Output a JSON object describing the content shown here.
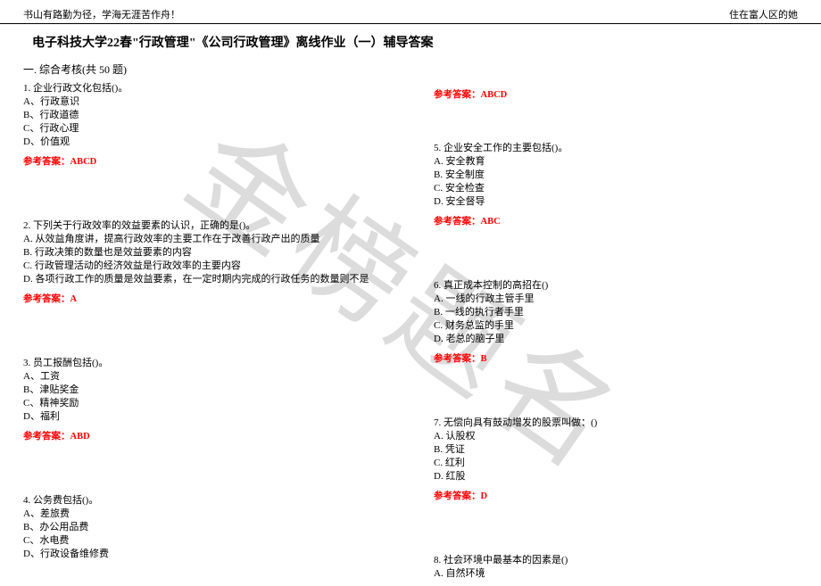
{
  "watermark": "金榜题名",
  "header": {
    "left": "书山有路勤为径，学海无涯苦作舟！",
    "right": "住在富人区的她"
  },
  "title": "电子科技大学22春\"行政管理\"《公司行政管理》离线作业（一）辅导答案",
  "section": "一. 综合考核(共 50 题)",
  "answer_label": "参考答案：",
  "left_questions": [
    {
      "num": "1.",
      "stem": "企业行政文化包括()。",
      "opts": [
        "A、行政意识",
        "B、行政道德",
        "C、行政心理",
        "D、价值观"
      ],
      "ans": "ABCD",
      "gap_after": "med"
    },
    {
      "num": "2.",
      "stem": "下列关于行政效率的效益要素的认识，正确的是()。",
      "opts": [
        "A. 从效益角度讲，提高行政效率的主要工作在于改善行政产出的质量",
        "B. 行政决策的数量也是效益要素的内容",
        "C. 行政管理活动的经济效益是行政效率的主要内容",
        "D. 各项行政工作的质量是效益要素，在一定时期内完成的行政任务的数量则不是"
      ],
      "ans": "A",
      "gap_after": "med"
    },
    {
      "num": "3.",
      "stem": "员工报酬包括()。",
      "opts": [
        "A、工资",
        "B、津贴奖金",
        "C、精神奖励",
        "D、福利"
      ],
      "ans": "ABD",
      "gap_after": "med"
    },
    {
      "num": "4.",
      "stem": "公务费包括()。",
      "opts": [
        "A、差旅费",
        "B、办公用品费",
        "C、水电费",
        "D、行政设备维修费"
      ],
      "ans": "",
      "gap_after": ""
    }
  ],
  "right_questions": [
    {
      "prepend_ans": "ABCD",
      "gap_before": "small"
    },
    {
      "num": "5.",
      "stem": "企业安全工作的主要包括()。",
      "opts": [
        "A. 安全教育",
        "B. 安全制度",
        "C. 安全检查",
        "D. 安全督导"
      ],
      "ans": "ABC",
      "gap_after": "med"
    },
    {
      "num": "6.",
      "stem": "真正成本控制的高招在()",
      "opts": [
        "A. 一线的行政主管手里",
        "B. 一线的执行者手里",
        "C. 财务总监的手里",
        "D. 老总的脑子里"
      ],
      "ans": "B",
      "gap_after": "med"
    },
    {
      "num": "7.",
      "stem": "无偿向具有鼓动增发的股票叫做：()",
      "opts": [
        "A. 认股权",
        "B. 凭证",
        "C. 红利",
        "D. 红股"
      ],
      "ans": "D",
      "gap_after": "med"
    },
    {
      "num": "8.",
      "stem": "社会环境中最基本的因素是()",
      "opts": [
        "A. 自然环境"
      ],
      "ans": "",
      "gap_after": ""
    }
  ]
}
